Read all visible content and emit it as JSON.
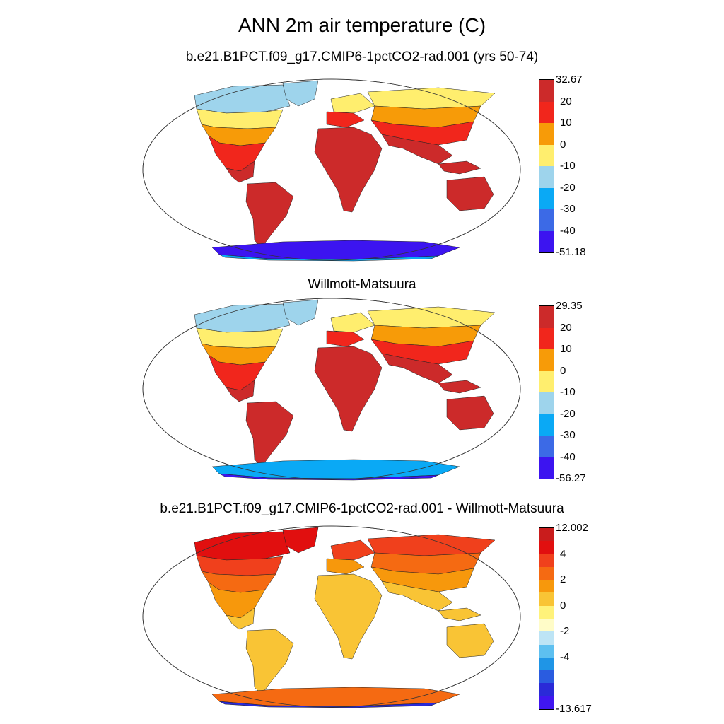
{
  "title": "ANN 2m air temperature (C)",
  "panels": [
    {
      "subtitle": "b.e21.B1PCT.f09_g17.CMIP6-1pctCO2-rad.001 (yrs 50-74)",
      "colorbar": {
        "colors": [
          "#cc2a2a",
          "#f1261c",
          "#f79b08",
          "#ffee6e",
          "#9ed4ec",
          "#0aa9f5",
          "#3c6ae6",
          "#3c14f0"
        ],
        "labels": [
          "32.67",
          "20",
          "10",
          "0",
          "-10",
          "-20",
          "-30",
          "-40",
          "-51.18"
        ]
      },
      "map_colors": {
        "tropics": "#cc2a2a",
        "mid": "#f1261c",
        "warm_temperate": "#f79b08",
        "cool": "#ffee6e",
        "polar": "#9ed4ec",
        "antarctica": "#3c14f0",
        "antarctica_edge": "#0aa9f5"
      }
    },
    {
      "subtitle": "Willmott-Matsuura",
      "colorbar": {
        "colors": [
          "#cc2a2a",
          "#f1261c",
          "#f79b08",
          "#ffee6e",
          "#9ed4ec",
          "#0aa9f5",
          "#3c6ae6",
          "#3c14f0"
        ],
        "labels": [
          "29.35",
          "20",
          "10",
          "0",
          "-10",
          "-20",
          "-30",
          "-40",
          "-56.27"
        ]
      },
      "map_colors": {
        "tropics": "#cc2a2a",
        "mid": "#f1261c",
        "warm_temperate": "#f79b08",
        "cool": "#ffee6e",
        "polar": "#9ed4ec",
        "antarctica": "#0aa9f5",
        "antarctica_edge": "#3c14f0"
      }
    },
    {
      "subtitle": "b.e21.B1PCT.f09_g17.CMIP6-1pctCO2-rad.001 - Willmott-Matsuura",
      "colorbar": {
        "colors": [
          "#c91c1c",
          "#e10f0f",
          "#f0401c",
          "#f56a12",
          "#f7980c",
          "#f9c435",
          "#fff27a",
          "#fffcc8",
          "#bde4f5",
          "#5ec0f0",
          "#1f95e6",
          "#2a5ce0",
          "#2a2ad8",
          "#4016f0"
        ],
        "labels": [
          "12.002",
          "4",
          "2",
          "0",
          "-2",
          "-4",
          "-13.617"
        ],
        "label_levels": [
          0,
          2,
          4,
          6,
          8,
          10,
          14
        ]
      },
      "map_colors": {
        "tropics": "#f9c435",
        "mid": "#f7980c",
        "warm_temperate": "#f56a12",
        "cool": "#f0401c",
        "polar": "#e10f0f",
        "antarctica": "#f56a12",
        "antarctica_edge": "#2a2ad8"
      }
    }
  ]
}
